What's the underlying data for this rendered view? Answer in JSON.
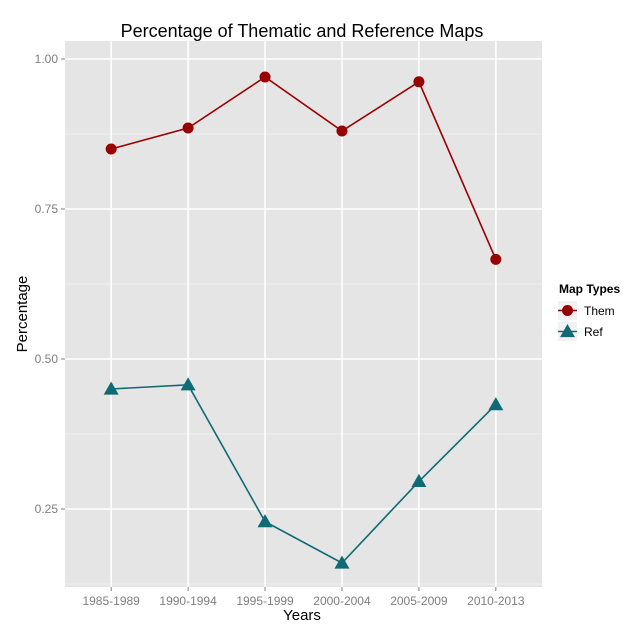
{
  "chart_data": {
    "type": "line",
    "title": "Percentage of Thematic and Reference Maps",
    "xlabel": "Years",
    "ylabel": "Percentage",
    "categories": [
      "1985-1989",
      "1990-1994",
      "1995-1999",
      "2000-2004",
      "2005-2009",
      "2010-2013"
    ],
    "ylim": [
      0.12,
      1.03
    ],
    "yticks": [
      0.25,
      0.5,
      0.75,
      1.0
    ],
    "ytick_labels": [
      "0.25",
      "0.50",
      "0.75",
      "1.00"
    ],
    "grid": true,
    "legend": {
      "title": "Map Types",
      "position": "right"
    },
    "series": [
      {
        "name": "Them",
        "marker": "circle",
        "color": "#990000",
        "values": [
          0.85,
          0.885,
          0.97,
          0.88,
          0.962,
          0.666
        ]
      },
      {
        "name": "Ref",
        "marker": "triangle",
        "color": "#0e6b75",
        "values": [
          0.45,
          0.457,
          0.229,
          0.16,
          0.296,
          0.424
        ]
      }
    ],
    "colors": {
      "panel_background": "#e5e5e5",
      "gridline": "#ffffff",
      "minor_gridline": "#f2f2f2"
    }
  }
}
